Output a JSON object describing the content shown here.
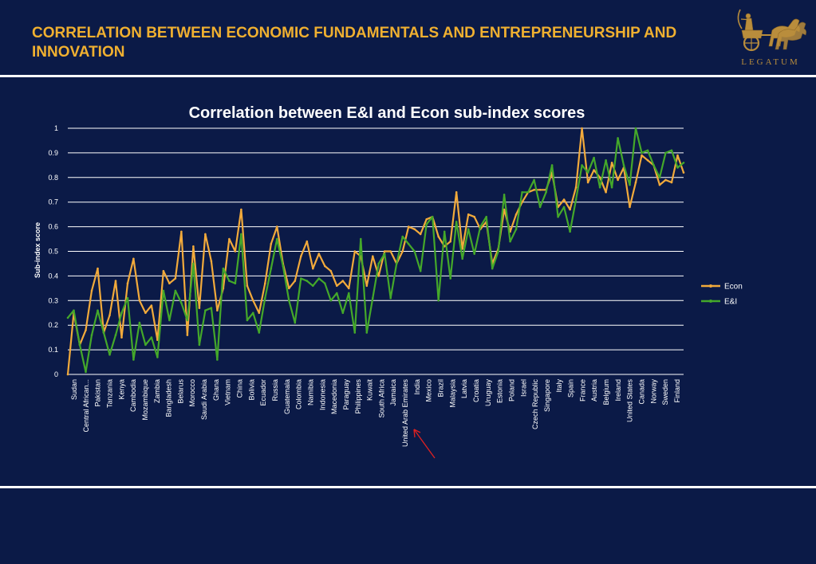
{
  "slide": {
    "title": "CORRELATION BETWEEN ECONOMIC FUNDAMENTALS AND ENTREPRENEURSHIP AND INNOVATION",
    "logo_text": "LEGATUM"
  },
  "colors": {
    "background": "#0b1a47",
    "title": "#f0b030",
    "econ": "#f2aa3b",
    "ei": "#44a82a",
    "grid": "#ffffff",
    "arrow": "#e02020"
  },
  "chart_data": {
    "type": "line",
    "title": "Correlation between E&I and Econ sub-index scores",
    "xlabel": "",
    "ylabel": "Sub-index score",
    "ylim": [
      0,
      1
    ],
    "yticks": [
      "0",
      "0.1",
      "0.2",
      "0.3",
      "0.4",
      "0.5",
      "0.6",
      "0.7",
      "0.8",
      "0.9",
      "1"
    ],
    "grid": true,
    "legend_position": "right",
    "x_tick_labels": [
      "Sudan",
      "Central African Republic",
      "Pakistan",
      "Tanzania",
      "Kenya",
      "Cambodia",
      "Mozambique",
      "Zambia",
      "Bangladesh",
      "Belarus",
      "Morocco",
      "Saudi Arabia",
      "Ghana",
      "Vietnam",
      "China",
      "Bolivia",
      "Ecuador",
      "Russia",
      "Guatemala",
      "Colombia",
      "Namibia",
      "Indonesia",
      "Macedonia",
      "Paraguay",
      "Philippines",
      "Kuwait",
      "South Africa",
      "Jamaica",
      "United Arab Emirates",
      "India",
      "Mexico",
      "Brazil",
      "Malaysia",
      "Latvia",
      "Croatia",
      "Uruguay",
      "Estonia",
      "Poland",
      "Israel",
      "Czech Republic",
      "Singapore",
      "Italy",
      "Spain",
      "France",
      "Austria",
      "Belgium",
      "Ireland",
      "United States",
      "Canada",
      "Norway",
      "Sweden",
      "Finland"
    ],
    "x_tick_display": [
      "Sudan",
      "Central African...",
      "Pakistan",
      "Tanzania",
      "Kenya",
      "Cambodia",
      "Mozambique",
      "Zambia",
      "Bangladesh",
      "Belarus",
      "Morocco",
      "Saudi Arabia",
      "Ghana",
      "Vietnam",
      "China",
      "Bolivia",
      "Ecuador",
      "Russia",
      "Guatemala",
      "Colombia",
      "Namibia",
      "Indonesia",
      "Macedonia",
      "Paraguay",
      "Philippines",
      "Kuwait",
      "South Africa",
      "Jamaica",
      "United Arab Emirates",
      "India",
      "Mexico",
      "Brazil",
      "Malaysia",
      "Latvia",
      "Croatia",
      "Uruguay",
      "Estonia",
      "Poland",
      "Israel",
      "Czech Republic",
      "Singapore",
      "Italy",
      "Spain",
      "France",
      "Austria",
      "Belgium",
      "Ireland",
      "United States",
      "Canada",
      "Norway",
      "Sweden",
      "Finland"
    ],
    "series": [
      {
        "name": "Econ",
        "color": "#f2aa3b",
        "values": [
          0,
          0.25,
          0.12,
          0.18,
          0.34,
          0.43,
          0.17,
          0.24,
          0.38,
          0.15,
          0.37,
          0.47,
          0.3,
          0.25,
          0.28,
          0.14,
          0.42,
          0.37,
          0.39,
          0.58,
          0.16,
          0.52,
          0.27,
          0.57,
          0.46,
          0.26,
          0.35,
          0.55,
          0.5,
          0.67,
          0.36,
          0.3,
          0.25,
          0.37,
          0.53,
          0.6,
          0.45,
          0.35,
          0.38,
          0.48,
          0.54,
          0.43,
          0.49,
          0.44,
          0.42,
          0.36,
          0.38,
          0.35,
          0.5,
          0.48,
          0.36,
          0.48,
          0.4,
          0.5,
          0.5,
          0.45,
          0.5,
          0.6,
          0.59,
          0.57,
          0.63,
          0.64,
          0.56,
          0.52,
          0.54,
          0.74,
          0.51,
          0.65,
          0.64,
          0.59,
          0.62,
          0.45,
          0.51,
          0.67,
          0.58,
          0.65,
          0.7,
          0.74,
          0.75,
          0.75,
          0.75,
          0.82,
          0.68,
          0.71,
          0.67,
          0.76,
          1.0,
          0.78,
          0.83,
          0.8,
          0.74,
          0.86,
          0.79,
          0.84,
          0.68,
          0.78,
          0.89,
          0.87,
          0.85,
          0.77,
          0.79,
          0.78,
          0.89,
          0.82
        ]
      },
      {
        "name": "E&I",
        "color": "#44a82a",
        "values": [
          0.23,
          0.26,
          0.12,
          0.01,
          0.16,
          0.26,
          0.17,
          0.08,
          0.16,
          0.25,
          0.31,
          0.06,
          0.21,
          0.12,
          0.15,
          0.07,
          0.34,
          0.22,
          0.34,
          0.29,
          0.22,
          0.45,
          0.12,
          0.26,
          0.27,
          0.06,
          0.43,
          0.38,
          0.37,
          0.57,
          0.22,
          0.25,
          0.17,
          0.31,
          0.43,
          0.55,
          0.44,
          0.3,
          0.21,
          0.39,
          0.38,
          0.36,
          0.39,
          0.37,
          0.3,
          0.33,
          0.25,
          0.33,
          0.17,
          0.55,
          0.17,
          0.31,
          0.45,
          0.49,
          0.31,
          0.45,
          0.56,
          0.53,
          0.5,
          0.42,
          0.61,
          0.64,
          0.3,
          0.58,
          0.39,
          0.62,
          0.47,
          0.59,
          0.49,
          0.6,
          0.64,
          0.43,
          0.5,
          0.73,
          0.54,
          0.59,
          0.74,
          0.74,
          0.79,
          0.68,
          0.74,
          0.85,
          0.64,
          0.68,
          0.58,
          0.71,
          0.85,
          0.82,
          0.88,
          0.76,
          0.87,
          0.76,
          0.96,
          0.85,
          0.77,
          1.0,
          0.9,
          0.91,
          0.85,
          0.8,
          0.9,
          0.91,
          0.84,
          0.86
        ]
      }
    ]
  }
}
